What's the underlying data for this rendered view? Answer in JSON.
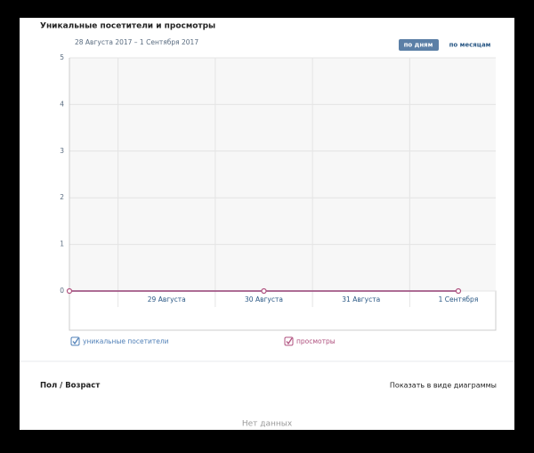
{
  "header": {
    "title": "Уникальные посетители и просмотры",
    "date_range": "28 Августа 2017 – 1 Сентября 2017",
    "buttons": [
      "по дням",
      "по месяцам"
    ]
  },
  "chart_data": {
    "type": "line",
    "categories": [
      null,
      "29 Августа",
      "30 Августа",
      "31 Августа",
      "1 Сентября"
    ],
    "series": [
      {
        "name": "уникальные посетители",
        "color": "#5181b8",
        "values": [
          0,
          0,
          0,
          0,
          0
        ]
      },
      {
        "name": "просмотры",
        "color": "#b0527f",
        "values": [
          0,
          0,
          0,
          0,
          0
        ]
      }
    ],
    "ylim": [
      0,
      5
    ],
    "yticks": [
      0,
      1,
      2,
      3,
      4,
      5
    ],
    "grid": true
  },
  "section": {
    "title": "Пол / Возраст",
    "link": "Показать в виде диаграммы",
    "empty": "Нет данных"
  }
}
